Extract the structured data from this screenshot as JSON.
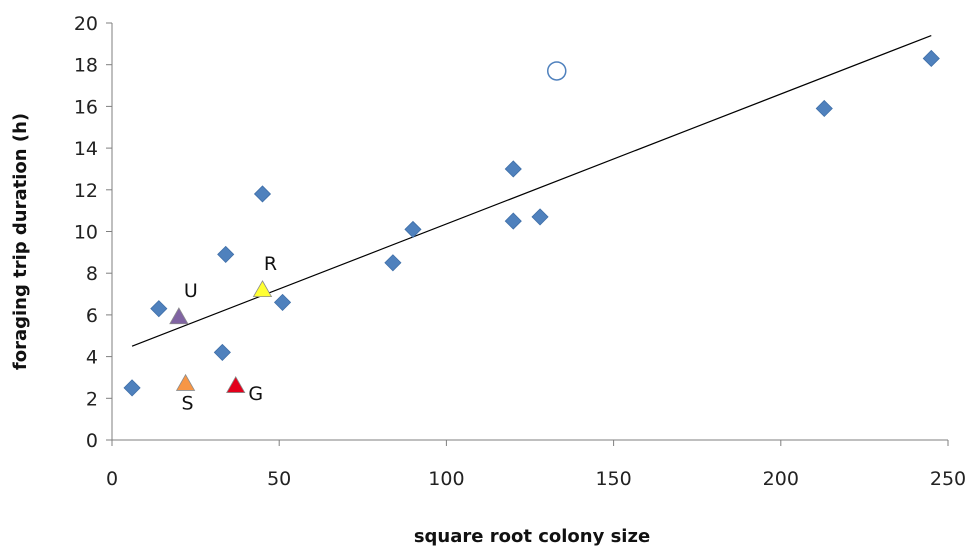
{
  "chart_data": {
    "type": "scatter",
    "title": "",
    "xlabel": "square root colony size",
    "ylabel": "foraging trip duration (h)",
    "xlim": [
      0,
      250
    ],
    "ylim": [
      0,
      20
    ],
    "x_ticks": [
      "0",
      "50",
      "100",
      "150",
      "200",
      "250"
    ],
    "y_ticks": [
      "0",
      "2",
      "4",
      "6",
      "8",
      "10",
      "12",
      "14",
      "16",
      "18",
      "20"
    ],
    "grid": false,
    "series": [
      {
        "marker": "diamond",
        "color": "#4f81bd",
        "points": [
          {
            "x": 6,
            "y": 2.5
          },
          {
            "x": 14,
            "y": 6.3
          },
          {
            "x": 33,
            "y": 4.2
          },
          {
            "x": 34,
            "y": 8.9
          },
          {
            "x": 45,
            "y": 11.8
          },
          {
            "x": 51,
            "y": 6.6
          },
          {
            "x": 84,
            "y": 8.5
          },
          {
            "x": 90,
            "y": 10.1
          },
          {
            "x": 120,
            "y": 13.0
          },
          {
            "x": 120,
            "y": 10.5
          },
          {
            "x": 128,
            "y": 10.7
          },
          {
            "x": 213,
            "y": 15.9
          },
          {
            "x": 245,
            "y": 18.3
          }
        ]
      },
      {
        "marker": "open-circle",
        "color": "#4f81bd",
        "points": [
          {
            "x": 133,
            "y": 17.7
          }
        ]
      },
      {
        "marker": "triangle",
        "points": [
          {
            "x": 20,
            "y": 5.9,
            "label": "U",
            "color": "#8064a2"
          },
          {
            "x": 22,
            "y": 2.7,
            "label": "S",
            "color": "#f79646"
          },
          {
            "x": 37,
            "y": 2.6,
            "label": "G",
            "color": "#e3001b"
          },
          {
            "x": 45,
            "y": 7.2,
            "label": "R",
            "color": "#ffff33"
          }
        ]
      }
    ],
    "trendline": {
      "x": [
        6,
        245
      ],
      "y": [
        4.5,
        19.4
      ],
      "color": "#000000"
    }
  }
}
